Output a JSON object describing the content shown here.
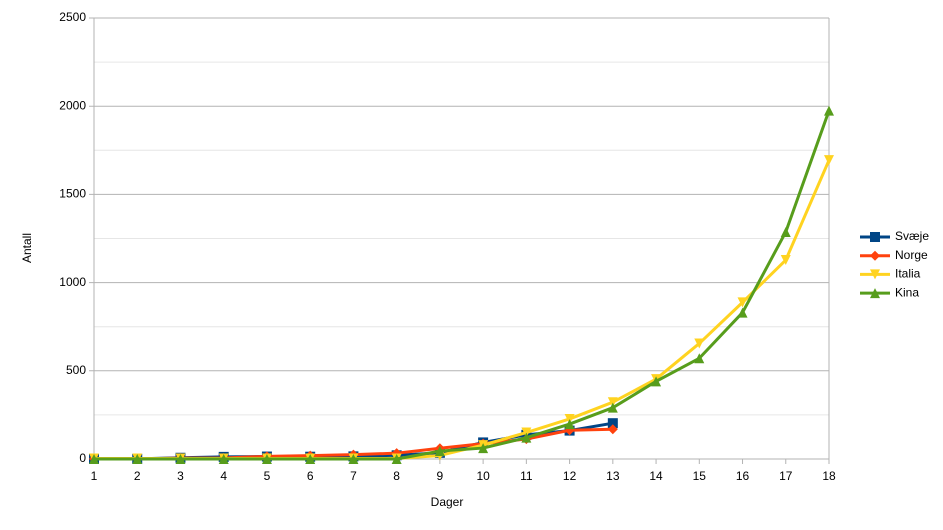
{
  "chart_data": {
    "type": "line",
    "x_label": "Dager",
    "y_label": "Antall",
    "x": [
      1,
      2,
      3,
      4,
      5,
      6,
      7,
      8,
      9,
      10,
      11,
      12,
      13,
      14,
      15,
      16,
      17,
      18
    ],
    "xlim": [
      1,
      18
    ],
    "xticks": [
      1,
      2,
      3,
      4,
      5,
      6,
      7,
      8,
      9,
      10,
      11,
      12,
      13,
      14,
      15,
      16,
      17,
      18
    ],
    "ylim": [
      0,
      2500
    ],
    "yticks": [
      0,
      500,
      1000,
      1500,
      2000,
      2500
    ],
    "minor_yticks": [
      250,
      750,
      1250,
      1750,
      2250
    ],
    "grid": true,
    "legend": "right",
    "series": [
      {
        "name": "Svæje",
        "color": "#004586",
        "marker": "square",
        "values": [
          1,
          1,
          7,
          12,
          14,
          13,
          15,
          21,
          35,
          94,
          137,
          161,
          203,
          null,
          null,
          null,
          null,
          null
        ]
      },
      {
        "name": "Norge",
        "color": "#ff420e",
        "marker": "diamond",
        "values": [
          1,
          1,
          5,
          6,
          15,
          19,
          25,
          33,
          61,
          87,
          113,
          163,
          169,
          null,
          null,
          null,
          null,
          null
        ]
      },
      {
        "name": "Italia",
        "color": "#ffd320",
        "marker": "triangle-down",
        "values": [
          3,
          3,
          3,
          3,
          3,
          3,
          3,
          3,
          20,
          79,
          150,
          227,
          322,
          453,
          655,
          888,
          1128,
          1694
        ]
      },
      {
        "name": "Kina",
        "color": "#579d1c",
        "marker": "triangle-up",
        "values": [
          0,
          0,
          0,
          0,
          0,
          0,
          0,
          0,
          45,
          62,
          121,
          198,
          291,
          440,
          571,
          830,
          1287,
          1975
        ]
      }
    ]
  }
}
